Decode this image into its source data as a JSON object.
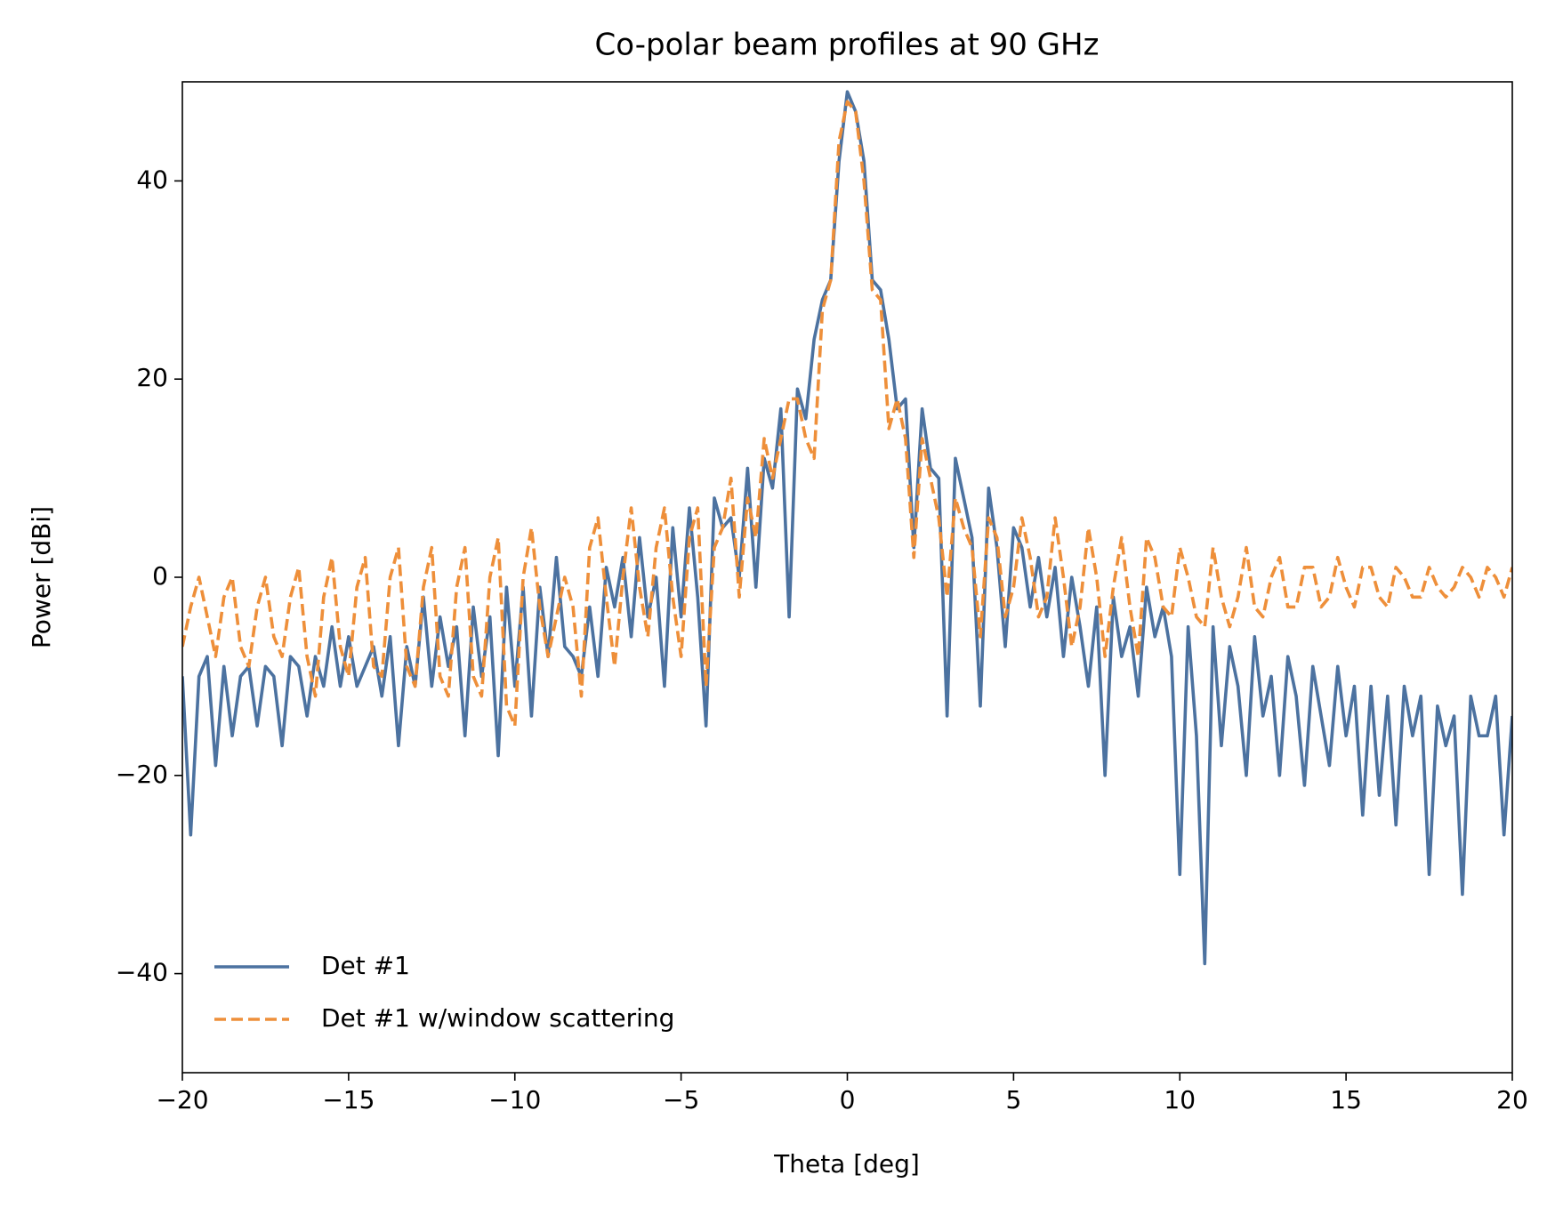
{
  "chart_data": {
    "type": "line",
    "title": "Co-polar beam profiles at 90 GHz",
    "x_label": "Theta [deg]",
    "y_label": "Power [dBi]",
    "x": [
      -20,
      -19.75,
      -19.5,
      -19.25,
      -19,
      -18.75,
      -18.5,
      -18.25,
      -18,
      -17.75,
      -17.5,
      -17.25,
      -17,
      -16.75,
      -16.5,
      -16.25,
      -16,
      -15.75,
      -15.5,
      -15.25,
      -15,
      -14.75,
      -14.5,
      -14.25,
      -14,
      -13.75,
      -13.5,
      -13.25,
      -13,
      -12.75,
      -12.5,
      -12.25,
      -12,
      -11.75,
      -11.5,
      -11.25,
      -11,
      -10.75,
      -10.5,
      -10.25,
      -10,
      -9.75,
      -9.5,
      -9.25,
      -9,
      -8.75,
      -8.5,
      -8.25,
      -8,
      -7.75,
      -7.5,
      -7.25,
      -7,
      -6.75,
      -6.5,
      -6.25,
      -6,
      -5.75,
      -5.5,
      -5.25,
      -5,
      -4.75,
      -4.5,
      -4.25,
      -4,
      -3.75,
      -3.5,
      -3.25,
      -3,
      -2.75,
      -2.5,
      -2.25,
      -2,
      -1.75,
      -1.5,
      -1.25,
      -1,
      -0.75,
      -0.5,
      -0.25,
      0,
      0.25,
      0.5,
      0.75,
      1,
      1.25,
      1.5,
      1.75,
      2,
      2.25,
      2.5,
      2.75,
      3,
      3.25,
      3.5,
      3.75,
      4,
      4.25,
      4.5,
      4.75,
      5,
      5.25,
      5.5,
      5.75,
      6,
      6.25,
      6.5,
      6.75,
      7,
      7.25,
      7.5,
      7.75,
      8,
      8.25,
      8.5,
      8.75,
      9,
      9.25,
      9.5,
      9.75,
      10,
      10.25,
      10.5,
      10.75,
      11,
      11.25,
      11.5,
      11.75,
      12,
      12.25,
      12.5,
      12.75,
      13,
      13.25,
      13.5,
      13.75,
      14,
      14.25,
      14.5,
      14.75,
      15,
      15.25,
      15.5,
      15.75,
      16,
      16.25,
      16.5,
      16.75,
      17,
      17.25,
      17.5,
      17.75,
      18,
      18.25,
      18.5,
      18.75,
      19,
      19.25,
      19.5,
      19.75,
      20
    ],
    "series": [
      {
        "name": "Det #1",
        "color": "#4c72a0",
        "dash": "solid",
        "values": [
          -10,
          -26,
          -10,
          -8,
          -19,
          -9,
          -16,
          -10,
          -9,
          -15,
          -9,
          -10,
          -17,
          -8,
          -9,
          -14,
          -8,
          -11,
          -5,
          -11,
          -6,
          -11,
          -9,
          -7,
          -12,
          -6,
          -17,
          -7,
          -11,
          -2,
          -11,
          -4,
          -9,
          -5,
          -16,
          -3,
          -10,
          -4,
          -18,
          -1,
          -11,
          -1,
          -14,
          -1,
          -8,
          2,
          -7,
          -8,
          -10,
          -3,
          -10,
          1,
          -3,
          2,
          -6,
          4,
          -4,
          0,
          -11,
          5,
          -4,
          7,
          -2,
          -15,
          8,
          5,
          6,
          0,
          11,
          -1,
          12,
          9,
          17,
          -4,
          19,
          16,
          24,
          28,
          30,
          42,
          49,
          47,
          42,
          30,
          29,
          24,
          17,
          18,
          3,
          17,
          11,
          10,
          -14,
          12,
          8,
          4,
          -13,
          9,
          3,
          -7,
          5,
          3,
          -3,
          2,
          -4,
          1,
          -8,
          0,
          -5,
          -11,
          -3,
          -20,
          -2,
          -8,
          -5,
          -12,
          -1,
          -6,
          -3,
          -8,
          -30,
          -5,
          -16,
          -39,
          -5,
          -17,
          -7,
          -11,
          -20,
          -6,
          -14,
          -10,
          -20,
          -8,
          -12,
          -21,
          -9,
          -14,
          -19,
          -9,
          -16,
          -11,
          -24,
          -11,
          -22,
          -12,
          -25,
          -11,
          -16,
          -12,
          -30,
          -13,
          -17,
          -14,
          -32,
          -12,
          -16,
          -16,
          -12,
          -26,
          -14
        ]
      },
      {
        "name": "Det #1 w/window scattering",
        "color": "#ee8f3a",
        "dash": "dashed",
        "values": [
          -7,
          -3,
          0,
          -4,
          -8,
          -2,
          0,
          -7,
          -9,
          -3,
          0,
          -6,
          -8,
          -2,
          1,
          -8,
          -12,
          -2,
          2,
          -7,
          -10,
          -1,
          2,
          -9,
          -10,
          0,
          3,
          -9,
          -11,
          -1,
          3,
          -10,
          -12,
          -1,
          3,
          -10,
          -12,
          0,
          4,
          -13,
          -15,
          0,
          5,
          -3,
          -8,
          -4,
          0,
          -3,
          -12,
          3,
          6,
          -2,
          -9,
          0,
          7,
          -1,
          -6,
          3,
          7,
          -2,
          -8,
          4,
          7,
          -11,
          3,
          5,
          10,
          -2,
          8,
          4,
          14,
          10,
          14,
          18,
          18,
          14,
          12,
          27,
          30,
          44,
          48,
          47,
          40,
          29,
          28,
          15,
          18,
          14,
          2,
          14,
          10,
          6,
          -2,
          8,
          5,
          3,
          -6,
          6,
          4,
          -4,
          -1,
          6,
          2,
          -4,
          -2,
          6,
          0,
          -7,
          -3,
          5,
          0,
          -8,
          -1,
          4,
          -3,
          -8,
          4,
          2,
          -3,
          -4,
          3,
          0,
          -4,
          -5,
          3,
          -2,
          -5,
          -2,
          3,
          -3,
          -4,
          0,
          2,
          -3,
          -3,
          1,
          1,
          -3,
          -2,
          2,
          -1,
          -3,
          1,
          1,
          -2,
          -3,
          1,
          0,
          -2,
          -2,
          1,
          -1,
          -2,
          -1,
          1,
          0,
          -2,
          1,
          0,
          -2,
          1
        ]
      }
    ],
    "xlim": [
      -20,
      20
    ],
    "ylim": [
      -50,
      50
    ],
    "xticks": [
      {
        "value": -20,
        "label": "−20"
      },
      {
        "value": -15,
        "label": "−15"
      },
      {
        "value": -10,
        "label": "−10"
      },
      {
        "value": -5,
        "label": "−5"
      },
      0,
      5,
      10,
      15,
      20
    ],
    "yticks": [
      {
        "value": -40,
        "label": "−40"
      },
      {
        "value": -20,
        "label": "−20"
      },
      0,
      20,
      40
    ],
    "grid": false,
    "legend": "lower left"
  }
}
